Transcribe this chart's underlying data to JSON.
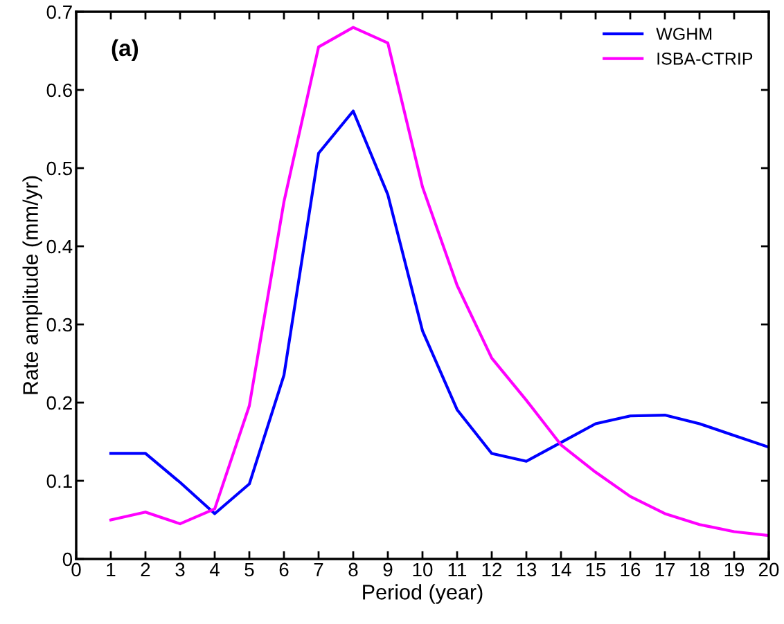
{
  "chart_data": {
    "type": "line",
    "xlabel": "Period (year)",
    "ylabel": "Rate amplitude (mm/yr)",
    "annotations": [
      "(a)"
    ],
    "x": [
      1,
      2,
      3,
      4,
      5,
      6,
      7,
      8,
      9,
      10,
      11,
      12,
      13,
      14,
      15,
      16,
      17,
      18,
      19,
      20
    ],
    "series": [
      {
        "name": "WGHM",
        "color": "#0000ff",
        "values": [
          0.135,
          0.135,
          0.098,
          0.058,
          0.096,
          0.235,
          0.519,
          0.573,
          0.466,
          0.292,
          0.191,
          0.135,
          0.125,
          0.149,
          0.173,
          0.183,
          0.184,
          0.173,
          0.158,
          0.143
        ]
      },
      {
        "name": "ISBA-CTRIP",
        "color": "#ff00ff",
        "values": [
          0.05,
          0.06,
          0.045,
          0.064,
          0.196,
          0.457,
          0.655,
          0.68,
          0.66,
          0.476,
          0.35,
          0.257,
          0.203,
          0.146,
          0.111,
          0.08,
          0.058,
          0.044,
          0.035,
          0.03
        ]
      }
    ],
    "xlim": [
      0,
      20
    ],
    "xticks": [
      0,
      1,
      2,
      3,
      4,
      5,
      6,
      7,
      8,
      9,
      10,
      11,
      12,
      13,
      14,
      15,
      16,
      17,
      18,
      19,
      20
    ],
    "ylim": [
      0,
      0.7
    ],
    "yticks": [
      0,
      0.1,
      0.2,
      0.3,
      0.4,
      0.5,
      0.6,
      0.7
    ],
    "grid": false,
    "legend": "top right",
    "marker": "none",
    "line_style": "solid"
  }
}
